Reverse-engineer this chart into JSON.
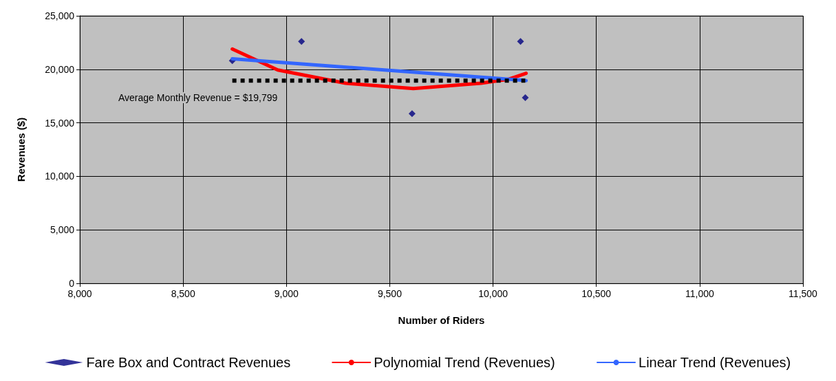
{
  "chart_data": {
    "type": "scatter",
    "xlabel": "Number of Riders",
    "ylabel": "Revenues ($)",
    "xlim": [
      8000,
      11500
    ],
    "xticks": [
      {
        "value": 8000,
        "label": "8,000"
      },
      {
        "value": 8500,
        "label": "8,500"
      },
      {
        "value": 9000,
        "label": "9,000"
      },
      {
        "value": 9500,
        "label": "9,500"
      },
      {
        "value": 10000,
        "label": "10,000"
      },
      {
        "value": 10500,
        "label": "10,500"
      },
      {
        "value": 11000,
        "label": "11,000"
      },
      {
        "value": 11500,
        "label": "11,500"
      }
    ],
    "ylim": [
      0,
      25000
    ],
    "yticks": [
      0,
      {
        "value": 5000,
        "label": "5,000"
      },
      {
        "value": 10000,
        "label": "10,000"
      },
      {
        "value": 15000,
        "label": "15,000"
      },
      {
        "value": 20000,
        "label": "20,000"
      },
      {
        "value": 25000,
        "label": "25,000"
      }
    ],
    "grid": true,
    "legend": "bottom",
    "annotations": [
      "Average Monthly Revenue = $19,799"
    ],
    "series": [
      {
        "name": "Fare Box and Contract Revenues",
        "marker": "diamond",
        "color": "#000080",
        "x": [
          8738,
          9073,
          9608,
          10133,
          10156
        ],
        "values": [
          20800,
          22600,
          15860,
          22600,
          17350
        ]
      },
      {
        "name": "Polynomial Trend (Revenues)",
        "type": "line",
        "color": "#ff0000",
        "x": [
          8738,
          8958,
          9286,
          9614,
          9942,
          10073,
          10160
        ],
        "values": [
          21900,
          19940,
          18700,
          18200,
          18700,
          19070,
          19630
        ]
      },
      {
        "name": "Linear Trend (Revenues)",
        "type": "line",
        "color": "#3366ff",
        "x": [
          8738,
          10160
        ],
        "values": [
          20990,
          18950
        ]
      },
      {
        "type": "line",
        "line_style": "dotted",
        "color": "#000000",
        "x": [
          8738,
          10156
        ],
        "values": [
          18950,
          18950
        ]
      }
    ]
  }
}
